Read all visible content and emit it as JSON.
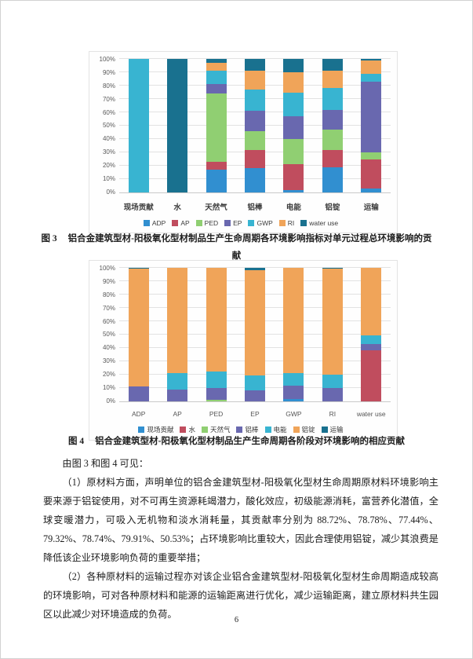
{
  "page": {
    "number": "6"
  },
  "figure3": {
    "caption_label": "图 3",
    "caption": "铝合金建筑型材-阳极氧化型材制品生产生命周期各环境影响指标对单元过程总环境影响的贡献"
  },
  "figure4": {
    "caption_label": "图 4",
    "caption": "铝合金建筑型材-阳极氧化型材制品生产生命周期各阶段对环境影响的相应贡献"
  },
  "body": {
    "intro": "由图 3 和图 4 可见：",
    "para1": "（1）原材料方面，声明单位的铝合金建筑型材-阳极氧化型材生命周期原材料环境影响主要来源于铝锭使用，对不可再生资源耗竭潜力，酸化效应，初级能源消耗，富营养化潜值，全球变暖潜力，可吸入无机物和淡水消耗量，其贡献率分别为 88.72%、78.78%、77.44%、79.32%、78.74%、79.91%、50.53%；占环境影响比重较大，因此合理使用铝锭，减少其浪费是降低该企业环境影响负荷的重要举措；",
    "para2": "（2）各种原材料的运输过程亦对该企业铝合金建筑型材-阳极氧化型材生命周期造成较高的环境影响，可对各种原材料和能源的运输距离进行优化，减少运输距离，建立原材料共生园区以此减少对环境造成的负荷。"
  },
  "chart_data": [
    {
      "type": "bar",
      "subtype": "stacked-100",
      "title": "",
      "categories": [
        "现场贡献",
        "水",
        "天然气",
        "铝棒",
        "电能",
        "铝锭",
        "运输"
      ],
      "series": [
        {
          "name": "ADP",
          "color": "#318FD0",
          "values": [
            0,
            0,
            17,
            18,
            2,
            19,
            3
          ]
        },
        {
          "name": "AP",
          "color": "#C04D5E",
          "values": [
            0,
            0,
            6,
            14,
            19,
            13,
            22
          ]
        },
        {
          "name": "PED",
          "color": "#90CF72",
          "values": [
            0,
            0,
            51,
            14,
            19,
            15,
            5
          ]
        },
        {
          "name": "EP",
          "color": "#6968AF",
          "values": [
            0,
            0,
            7,
            15,
            17,
            15,
            53
          ]
        },
        {
          "name": "GWP",
          "color": "#38B4D1",
          "values": [
            100,
            0,
            10,
            16,
            18,
            16,
            6
          ]
        },
        {
          "name": "RI",
          "color": "#F0A459",
          "values": [
            0,
            0,
            6,
            14,
            15,
            13,
            10
          ]
        },
        {
          "name": "water use",
          "color": "#19718F",
          "values": [
            0,
            100,
            3,
            9,
            10,
            9,
            1
          ]
        }
      ],
      "xlabel": "",
      "ylabel": "",
      "y_max": 100,
      "y_step": 10,
      "y_tick_suffix": "%",
      "ylim": [
        0,
        100
      ],
      "grid": true,
      "legend_position": "bottom"
    },
    {
      "type": "bar",
      "subtype": "stacked-100",
      "title": "",
      "categories": [
        "ADP",
        "AP",
        "PED",
        "EP",
        "GWP",
        "RI",
        "water use"
      ],
      "series": [
        {
          "name": "现场贡献",
          "color": "#318FD0",
          "values": [
            0,
            0,
            0,
            0,
            2,
            0,
            0
          ]
        },
        {
          "name": "水",
          "color": "#C04D5E",
          "values": [
            0,
            0,
            0,
            0,
            0,
            0,
            38.5
          ]
        },
        {
          "name": "天然气",
          "color": "#90CF72",
          "values": [
            0,
            0,
            1,
            0,
            0,
            0,
            0
          ]
        },
        {
          "name": "铝棒",
          "color": "#6968AF",
          "values": [
            11,
            9,
            9,
            8.5,
            9.5,
            9.8,
            5
          ]
        },
        {
          "name": "电能",
          "color": "#38B4D1",
          "values": [
            0,
            12,
            12.3,
            10.7,
            9.5,
            10,
            6.7
          ]
        },
        {
          "name": "铝锭",
          "color": "#F0A459",
          "values": [
            88.72,
            78.78,
            77.44,
            79.32,
            78.74,
            79.91,
            50.53
          ]
        },
        {
          "name": "运输",
          "color": "#19718F",
          "values": [
            0.28,
            0.22,
            0.26,
            1.48,
            0.26,
            0.29,
            0.27
          ]
        }
      ],
      "xlabel": "",
      "ylabel": "",
      "y_max": 100,
      "y_step": 10,
      "y_tick_suffix": "%",
      "ylim": [
        0,
        100
      ],
      "grid": true,
      "legend_position": "bottom"
    }
  ]
}
